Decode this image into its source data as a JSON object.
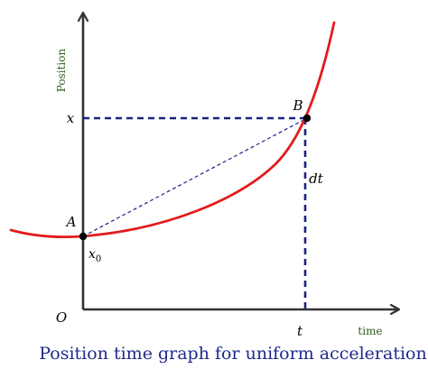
{
  "caption": "Position time graph for uniform acceleration",
  "axes": {
    "y_label": "Position",
    "x_label": "time",
    "origin_label": "O"
  },
  "points": {
    "a_label": "A",
    "b_label": "B",
    "x0_label": "x",
    "x0_subscript": "0",
    "x_label": "x",
    "t_label": "t",
    "dt_label": "dt"
  },
  "colors": {
    "curve": "#e31a1c",
    "dashed_guides": "#1a237e",
    "axis": "#333333",
    "axis_label_text": "#2e5e1f",
    "caption_text": "#1f2a8c",
    "point_fill": "#000000"
  }
}
